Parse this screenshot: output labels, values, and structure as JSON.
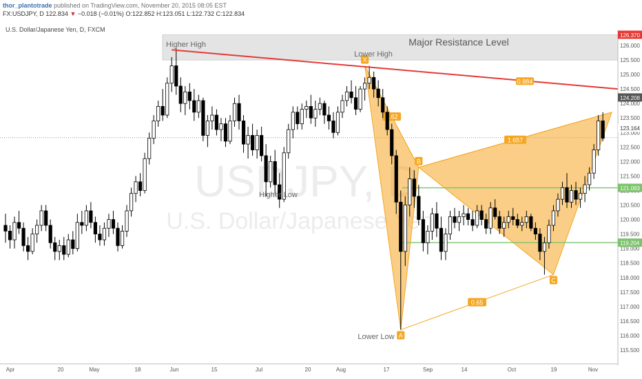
{
  "header": {
    "user": "thor_plantotrade",
    "published": " published on TradingView.com, November 20, 2015 08:05 EST",
    "symbol": "FX:USDJPY, D",
    "last": "122.834",
    "change": "−0.018 (−0.01%)",
    "ohlc": "O:122.852 H:123.051 L:122.732 C:122.834",
    "instrument": "U.S. Dollar/Japanese Yen, D, FXCM"
  },
  "watermark": {
    "symbol": "USDJPY, D",
    "name": "U.S. Dollar/Japanese Yen"
  },
  "colors": {
    "up": "#ffffff",
    "down": "#000000",
    "trend": "#e53935",
    "pattern": "#f5a623",
    "level": "#7cc36b",
    "red_tag": "#e53935",
    "dark_tag": "#555555"
  },
  "annotations": {
    "zone_label": "Major Resistance Level",
    "higher_high": "Higher High",
    "lower_high": "Lower High",
    "higher_low": "Higher Low",
    "lower_low": "Lower Low",
    "pt_x": "X",
    "pt_a": "A",
    "pt_b": "B",
    "pt_c": "C",
    "r1": "0.62",
    "r2": "1.657",
    "r3": "0.65",
    "r4": "0.884"
  },
  "chart_data": {
    "type": "candlestick",
    "title": "U.S. Dollar/Japanese Yen, D, FXCM",
    "y_ticks": [
      115.5,
      116,
      116.5,
      117,
      117.5,
      118,
      118.5,
      119,
      119.5,
      120,
      120.5,
      121,
      121.5,
      122,
      122.5,
      123,
      123.5,
      124,
      124.5,
      125,
      125.5,
      126
    ],
    "y_tick_labels": [
      "115.500",
      "116.000",
      "116.500",
      "117.000",
      "117.500",
      "118.000",
      "118.500",
      "119.000",
      "119.500",
      "120.000",
      "120.500",
      "121.000",
      "121.500",
      "122.000",
      "122.500",
      "123.000",
      "123.500",
      "124.000",
      "124.500",
      "125.000",
      "125.500",
      "126.000"
    ],
    "x_tick_labels": [
      "Apr",
      "20",
      "May",
      "18",
      "Jun",
      "15",
      "Jul",
      "20",
      "Aug",
      "17",
      "Sep",
      "14",
      "Oct",
      "19",
      "Nov"
    ],
    "price_tags": [
      {
        "label": "126.370",
        "value": 126.37,
        "style": "red"
      },
      {
        "label": "124.208",
        "value": 124.208,
        "style": "dark"
      },
      {
        "label": "123.164",
        "value": 123.164,
        "style": "plain"
      },
      {
        "label": "121.093",
        "value": 121.093,
        "style": "green"
      },
      {
        "label": "119.204",
        "value": 119.204,
        "style": "green"
      }
    ],
    "resistance_zone": [
      125.5,
      126.37
    ],
    "levels": [
      121.093,
      119.204
    ],
    "last_price": 122.834,
    "trendline": {
      "from": {
        "date": "Jun 05",
        "value": 125.85
      },
      "to": {
        "date": "Nov 20",
        "value": 124.5
      }
    },
    "pattern_points": {
      "X": {
        "date": "Aug 12",
        "value": 125.3
      },
      "A": {
        "date": "Aug 24",
        "value": 116.2
      },
      "B": {
        "date": "Aug 28",
        "value": 121.8
      },
      "C": {
        "date": "Oct 15",
        "value": 118.1
      },
      "D": {
        "date": "Nov 20",
        "value": 123.7
      }
    },
    "candles": [
      [
        119.8,
        120.2,
        119.2,
        119.6
      ],
      [
        119.6,
        119.8,
        119.0,
        119.3
      ],
      [
        119.3,
        120.1,
        119.0,
        119.9
      ],
      [
        119.9,
        120.3,
        119.5,
        119.7
      ],
      [
        119.7,
        119.9,
        118.9,
        119.1
      ],
      [
        119.1,
        119.4,
        118.6,
        118.9
      ],
      [
        118.9,
        119.7,
        118.8,
        119.5
      ],
      [
        119.5,
        120.0,
        119.2,
        119.8
      ],
      [
        119.8,
        120.5,
        119.6,
        120.3
      ],
      [
        120.3,
        120.5,
        119.6,
        119.8
      ],
      [
        119.8,
        120.0,
        119.0,
        119.2
      ],
      [
        119.2,
        119.4,
        118.6,
        118.9
      ],
      [
        118.9,
        119.3,
        118.6,
        119.1
      ],
      [
        119.1,
        119.4,
        118.6,
        118.8
      ],
      [
        118.8,
        119.5,
        118.7,
        119.3
      ],
      [
        119.3,
        119.6,
        118.8,
        119.0
      ],
      [
        119.0,
        120.2,
        118.9,
        119.9
      ],
      [
        119.9,
        120.3,
        119.5,
        119.8
      ],
      [
        119.8,
        120.5,
        119.6,
        120.3
      ],
      [
        120.3,
        120.6,
        119.7,
        119.9
      ],
      [
        119.9,
        120.1,
        119.2,
        119.5
      ],
      [
        119.5,
        119.8,
        119.1,
        119.3
      ],
      [
        119.3,
        119.9,
        119.1,
        119.7
      ],
      [
        119.7,
        120.2,
        119.4,
        120.0
      ],
      [
        120.0,
        120.3,
        119.5,
        119.7
      ],
      [
        119.7,
        119.9,
        118.9,
        119.1
      ],
      [
        119.1,
        119.8,
        119.0,
        119.6
      ],
      [
        119.6,
        120.5,
        119.4,
        120.3
      ],
      [
        120.3,
        121.1,
        120.1,
        120.9
      ],
      [
        120.9,
        121.5,
        120.6,
        121.3
      ],
      [
        121.3,
        121.6,
        120.8,
        121.0
      ],
      [
        121.0,
        122.3,
        120.9,
        122.1
      ],
      [
        122.1,
        123.0,
        121.9,
        122.8
      ],
      [
        122.8,
        123.6,
        122.6,
        123.4
      ],
      [
        123.4,
        124.1,
        123.2,
        123.9
      ],
      [
        123.9,
        124.5,
        123.4,
        123.6
      ],
      [
        123.6,
        124.9,
        123.5,
        124.7
      ],
      [
        124.7,
        125.6,
        124.4,
        125.3
      ],
      [
        125.3,
        125.9,
        124.3,
        124.6
      ],
      [
        124.6,
        124.9,
        123.7,
        124.0
      ],
      [
        124.0,
        124.6,
        123.6,
        124.4
      ],
      [
        124.4,
        124.7,
        123.8,
        124.1
      ],
      [
        124.1,
        124.5,
        123.4,
        123.7
      ],
      [
        123.7,
        124.3,
        123.5,
        124.1
      ],
      [
        124.1,
        124.2,
        122.7,
        122.9
      ],
      [
        122.9,
        123.6,
        122.5,
        123.4
      ],
      [
        123.4,
        123.9,
        123.1,
        123.6
      ],
      [
        123.6,
        123.8,
        122.9,
        123.1
      ],
      [
        123.1,
        123.5,
        122.7,
        123.3
      ],
      [
        123.3,
        123.5,
        122.5,
        122.7
      ],
      [
        122.7,
        123.6,
        122.6,
        123.4
      ],
      [
        123.4,
        124.2,
        123.2,
        124.0
      ],
      [
        124.0,
        124.3,
        123.1,
        123.4
      ],
      [
        123.4,
        123.6,
        122.3,
        122.6
      ],
      [
        122.6,
        123.2,
        122.1,
        122.9
      ],
      [
        122.9,
        123.3,
        122.2,
        122.4
      ],
      [
        122.4,
        123.1,
        122.1,
        122.9
      ],
      [
        122.9,
        123.2,
        122.0,
        122.2
      ],
      [
        122.2,
        122.6,
        120.8,
        121.3
      ],
      [
        121.3,
        122.2,
        121.1,
        122.0
      ],
      [
        122.0,
        122.4,
        120.9,
        121.2
      ],
      [
        121.2,
        121.6,
        120.4,
        120.7
      ],
      [
        120.7,
        122.5,
        120.6,
        122.3
      ],
      [
        122.3,
        123.3,
        122.1,
        123.1
      ],
      [
        123.1,
        123.9,
        122.8,
        123.7
      ],
      [
        123.7,
        123.9,
        123.1,
        123.3
      ],
      [
        123.3,
        124.0,
        123.1,
        123.8
      ],
      [
        123.8,
        124.1,
        123.5,
        123.9
      ],
      [
        123.9,
        124.3,
        123.3,
        123.5
      ],
      [
        123.5,
        124.1,
        123.2,
        123.8
      ],
      [
        123.8,
        124.2,
        123.6,
        124.0
      ],
      [
        124.0,
        124.1,
        123.3,
        123.6
      ],
      [
        123.6,
        123.9,
        123.1,
        123.4
      ],
      [
        123.4,
        123.7,
        122.8,
        123.0
      ],
      [
        123.0,
        123.9,
        122.9,
        123.7
      ],
      [
        123.7,
        124.3,
        123.5,
        124.1
      ],
      [
        124.1,
        124.6,
        123.9,
        124.4
      ],
      [
        124.4,
        124.8,
        124.0,
        124.2
      ],
      [
        124.2,
        124.6,
        123.6,
        123.8
      ],
      [
        123.8,
        124.6,
        123.7,
        124.5
      ],
      [
        124.5,
        124.9,
        124.1,
        124.7
      ],
      [
        124.7,
        125.3,
        124.5,
        124.9
      ],
      [
        124.9,
        125.1,
        124.2,
        124.5
      ],
      [
        124.5,
        124.8,
        123.9,
        124.2
      ],
      [
        124.2,
        124.5,
        123.5,
        123.7
      ],
      [
        123.7,
        123.9,
        122.9,
        123.1
      ],
      [
        123.1,
        123.3,
        121.9,
        122.2
      ],
      [
        122.2,
        122.4,
        120.2,
        120.6
      ],
      [
        120.6,
        121.0,
        116.2,
        118.9
      ],
      [
        118.9,
        120.8,
        118.4,
        120.5
      ],
      [
        120.5,
        121.8,
        120.1,
        121.4
      ],
      [
        121.4,
        121.7,
        120.4,
        120.8
      ],
      [
        120.8,
        121.2,
        119.8,
        120.0
      ],
      [
        120.0,
        120.3,
        118.9,
        119.2
      ],
      [
        119.2,
        119.8,
        118.8,
        119.6
      ],
      [
        119.6,
        120.4,
        119.3,
        120.2
      ],
      [
        120.2,
        120.6,
        119.4,
        119.7
      ],
      [
        119.7,
        120.1,
        118.6,
        118.9
      ],
      [
        118.9,
        119.7,
        118.6,
        119.5
      ],
      [
        119.5,
        120.3,
        119.3,
        120.1
      ],
      [
        120.1,
        120.4,
        119.7,
        119.9
      ],
      [
        119.9,
        120.3,
        119.6,
        120.1
      ],
      [
        120.1,
        120.5,
        119.8,
        120.2
      ],
      [
        120.2,
        120.4,
        119.8,
        120.0
      ],
      [
        120.0,
        120.3,
        119.6,
        119.8
      ],
      [
        119.8,
        120.5,
        119.7,
        120.3
      ],
      [
        120.3,
        120.5,
        119.8,
        120.0
      ],
      [
        120.0,
        120.2,
        119.5,
        119.7
      ],
      [
        119.7,
        120.6,
        119.5,
        120.4
      ],
      [
        120.4,
        120.7,
        120.0,
        120.1
      ],
      [
        120.1,
        120.3,
        119.5,
        119.7
      ],
      [
        119.7,
        120.1,
        119.4,
        119.9
      ],
      [
        119.9,
        120.3,
        119.7,
        120.1
      ],
      [
        120.1,
        120.4,
        119.8,
        120.0
      ],
      [
        120.0,
        120.2,
        119.7,
        119.8
      ],
      [
        119.8,
        120.1,
        119.6,
        119.9
      ],
      [
        119.9,
        120.3,
        119.7,
        120.1
      ],
      [
        120.1,
        120.2,
        119.6,
        119.7
      ],
      [
        119.7,
        119.9,
        119.3,
        119.5
      ],
      [
        119.5,
        119.7,
        118.6,
        118.9
      ],
      [
        118.9,
        119.4,
        118.1,
        119.2
      ],
      [
        119.2,
        120.0,
        119.0,
        119.8
      ],
      [
        119.8,
        120.5,
        119.6,
        120.3
      ],
      [
        120.3,
        120.9,
        120.1,
        120.7
      ],
      [
        120.7,
        121.3,
        120.5,
        121.1
      ],
      [
        121.1,
        121.6,
        120.4,
        120.6
      ],
      [
        120.6,
        121.2,
        120.4,
        121.0
      ],
      [
        121.0,
        121.3,
        120.5,
        120.7
      ],
      [
        120.7,
        121.1,
        120.4,
        120.9
      ],
      [
        120.9,
        121.5,
        120.6,
        121.2
      ],
      [
        121.2,
        121.8,
        121.0,
        121.6
      ],
      [
        121.6,
        122.6,
        121.4,
        122.4
      ],
      [
        122.4,
        123.6,
        122.2,
        123.4
      ],
      [
        123.4,
        123.7,
        122.7,
        122.8
      ]
    ]
  }
}
